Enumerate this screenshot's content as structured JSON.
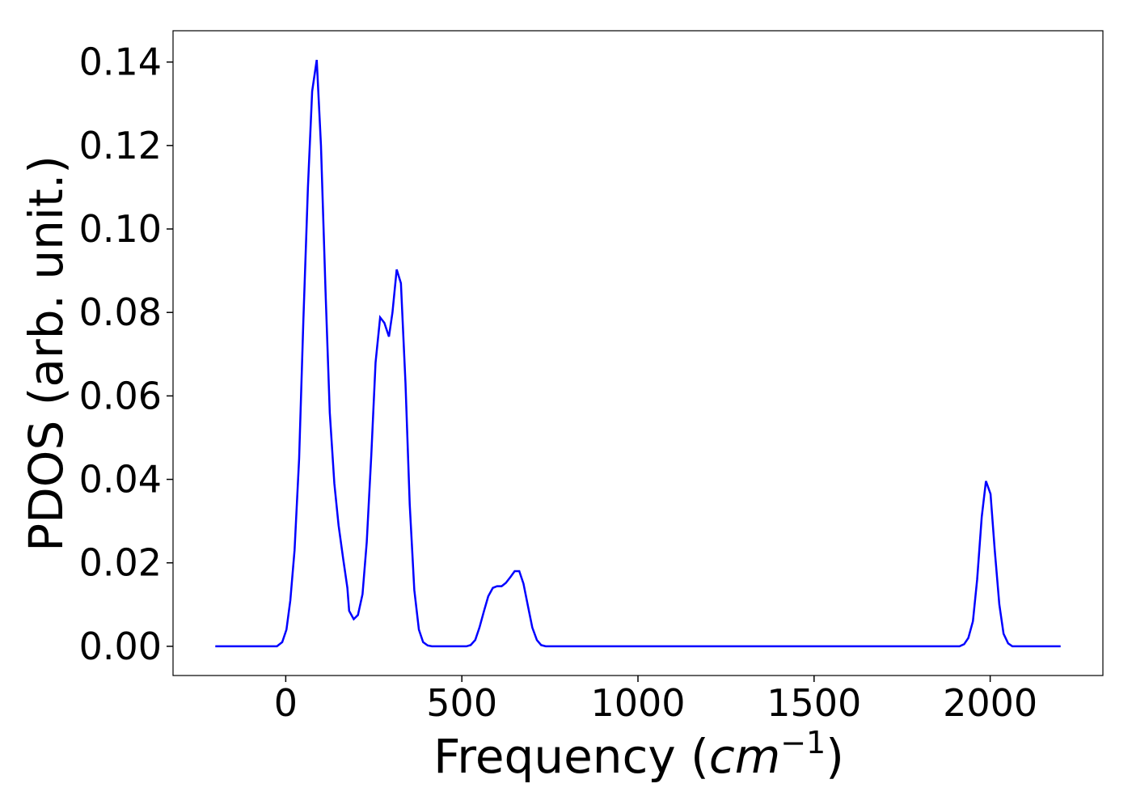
{
  "chart_data": {
    "type": "line",
    "x_label": "Frequency (",
    "x_label_math": "cm",
    "x_label_sup": "−1",
    "x_label_end": ")",
    "y_label": "PDOS (arb. unit.)",
    "x": [
      -200,
      -25,
      -10,
      2,
      13,
      25,
      38,
      50,
      63,
      75,
      88,
      100,
      113,
      125,
      138,
      150,
      163,
      175,
      180,
      193,
      205,
      218,
      230,
      243,
      255,
      268,
      280,
      293,
      303,
      315,
      327,
      340,
      352,
      365,
      378,
      390,
      403,
      415,
      513,
      525,
      538,
      550,
      563,
      575,
      588,
      600,
      613,
      625,
      638,
      650,
      663,
      675,
      688,
      700,
      713,
      725,
      738,
      1913,
      1926,
      1938,
      1951,
      1963,
      1976,
      1988,
      2001,
      2013,
      2026,
      2038,
      2051,
      2063,
      2200
    ],
    "series": [
      {
        "name": "PDOS",
        "color": "#0000ff",
        "values": [
          0,
          0,
          0.001,
          0.004,
          0.011,
          0.023,
          0.045,
          0.078,
          0.11,
          0.133,
          0.1405,
          0.12,
          0.085,
          0.056,
          0.039,
          0.029,
          0.021,
          0.014,
          0.0085,
          0.0065,
          0.0075,
          0.0125,
          0.025,
          0.046,
          0.068,
          0.0788,
          0.0775,
          0.0742,
          0.08,
          0.0903,
          0.087,
          0.063,
          0.034,
          0.0135,
          0.004,
          0.001,
          0.0002,
          0,
          0,
          0.0003,
          0.0015,
          0.0045,
          0.0085,
          0.012,
          0.014,
          0.0144,
          0.0144,
          0.0152,
          0.0166,
          0.018,
          0.018,
          0.015,
          0.0095,
          0.0045,
          0.0015,
          0.0003,
          0,
          0,
          0.0005,
          0.002,
          0.006,
          0.016,
          0.031,
          0.0396,
          0.0365,
          0.023,
          0.01,
          0.003,
          0.0007,
          0,
          0
        ]
      }
    ],
    "xlim": [
      -320,
      2320
    ],
    "ylim": [
      -0.007,
      0.1475
    ],
    "xticks": [
      0,
      500,
      1000,
      1500,
      2000
    ],
    "yticks": [
      {
        "value": 0,
        "label": "0.00"
      },
      {
        "value": 0.02,
        "label": "0.02"
      },
      {
        "value": 0.04,
        "label": "0.04"
      },
      {
        "value": 0.06,
        "label": "0.06"
      },
      {
        "value": 0.08,
        "label": "0.08"
      },
      {
        "value": 0.1,
        "label": "0.10"
      },
      {
        "value": 0.12,
        "label": "0.12"
      },
      {
        "value": 0.14,
        "label": "0.14"
      }
    ],
    "grid": false
  }
}
